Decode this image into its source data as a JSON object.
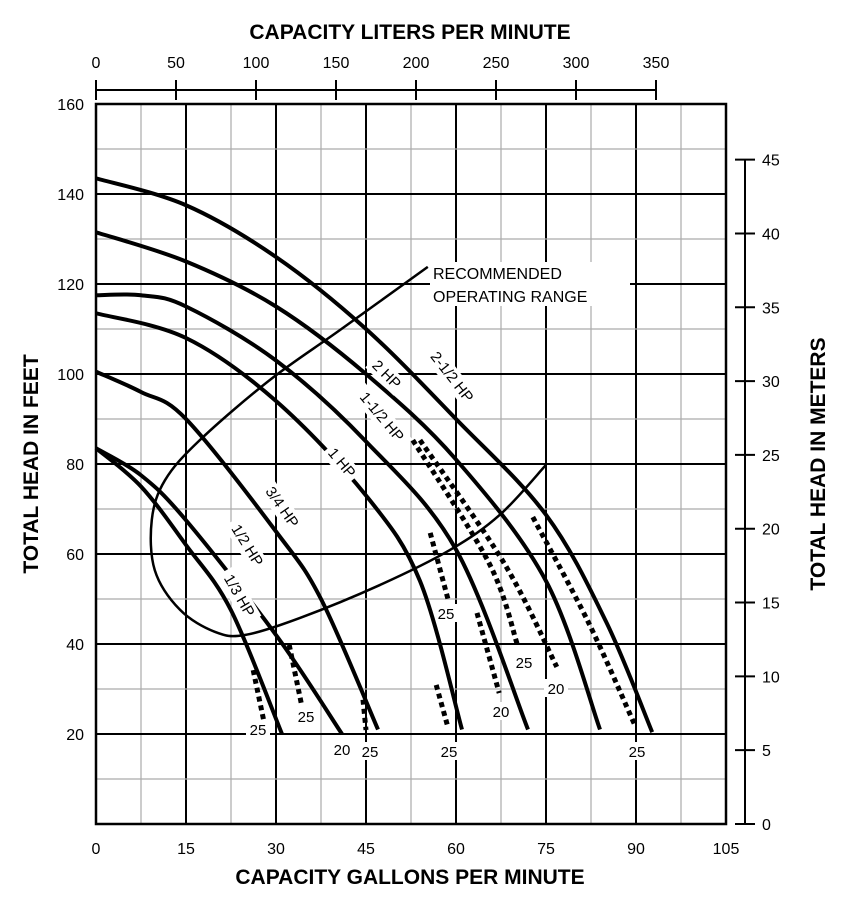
{
  "chart_data": {
    "type": "line",
    "title": "",
    "xlabel": "CAPACITY GALLONS PER MINUTE",
    "ylabel": "TOTAL HEAD IN FEET",
    "x2label": "CAPACITY LITERS PER MINUTE",
    "y2label": "TOTAL HEAD IN METERS",
    "xlim": [
      0,
      105
    ],
    "ylim": [
      0,
      160
    ],
    "x2lim": [
      0,
      350
    ],
    "y2lim": [
      0,
      45
    ],
    "grid": true,
    "xticks": [
      "0",
      "15",
      "30",
      "45",
      "60",
      "75",
      "90",
      "105"
    ],
    "yticks": [
      "20",
      "40",
      "60",
      "80",
      "100",
      "120",
      "140",
      "160"
    ],
    "x2ticks": [
      "0",
      "50",
      "100",
      "150",
      "200",
      "250",
      "300",
      "350"
    ],
    "y2ticks": [
      "0",
      "5",
      "10",
      "15",
      "20",
      "25",
      "30",
      "35",
      "40",
      "45"
    ],
    "series": [
      {
        "name": "2-1/2 HP",
        "x": [
          0,
          15,
          30,
          45,
          60,
          75,
          85,
          92.7
        ],
        "y": [
          143.5,
          137.5,
          126,
          110,
          90,
          68.7,
          45,
          20.4
        ]
      },
      {
        "name": "2 HP",
        "x": [
          0,
          15,
          30,
          45,
          60,
          75,
          84
        ],
        "y": [
          131.5,
          125,
          115,
          100,
          81,
          54,
          21
        ]
      },
      {
        "name": "1-1/2 HP",
        "x": [
          0,
          7.5,
          15,
          30,
          45,
          60,
          72
        ],
        "y": [
          117.5,
          117.5,
          115,
          103,
          85,
          61,
          21
        ]
      },
      {
        "name": "1 HP",
        "x": [
          0,
          15,
          30,
          45,
          54,
          61
        ],
        "y": [
          113.5,
          108,
          94,
          73,
          54,
          21
        ]
      },
      {
        "name": "3/4 HP",
        "x": [
          0,
          7.5,
          15,
          30,
          37.5,
          47
        ],
        "y": [
          100.5,
          96,
          90,
          65,
          50,
          21
        ]
      },
      {
        "name": "1/2 HP",
        "x": [
          0,
          7.5,
          15,
          30,
          41
        ],
        "y": [
          83.5,
          77.5,
          67.5,
          42,
          20
        ]
      },
      {
        "name": "1/3 HP",
        "x": [
          0,
          7.5,
          15,
          22.5,
          31
        ],
        "y": [
          83.5,
          75,
          62,
          47.5,
          20
        ]
      }
    ],
    "dotted_branches": [
      {
        "label": "25",
        "x": [
          26.2,
          28
        ],
        "y": [
          34.2,
          22.7
        ]
      },
      {
        "label": "25",
        "x": [
          32.2,
          34.2
        ],
        "y": [
          39.8,
          26.9
        ]
      },
      {
        "label": "20",
        "x": [],
        "y": []
      },
      {
        "label": "25",
        "x": [
          44.5,
          45
        ],
        "y": [
          27.6,
          20.9
        ]
      },
      {
        "label": "25",
        "x": [
          55.7,
          58.7
        ],
        "y": [
          64.7,
          49.8
        ]
      },
      {
        "label": "25",
        "x": [
          56.7,
          58.7
        ],
        "y": [
          30.9,
          21.3
        ]
      },
      {
        "label": "20",
        "x": [
          63.5,
          67.2
        ],
        "y": [
          46.9,
          29.1
        ]
      },
      {
        "label": "25",
        "x": [
          52.8,
          65.5,
          70.2
        ],
        "y": [
          85.3,
          58,
          40
        ]
      },
      {
        "label": "20",
        "x": [
          54,
          68,
          76.8
        ],
        "y": [
          85.3,
          58,
          34.9
        ]
      },
      {
        "label": "25",
        "x": [
          72.8,
          82,
          89.8
        ],
        "y": [
          68.2,
          45,
          22
        ]
      }
    ],
    "annotations": {
      "range_label_1": "RECOMMENDED",
      "range_label_2": "OPERATING RANGE",
      "range_boundary": {
        "x": [
          55.3,
          40.7,
          29,
          17.3,
          11.5,
          9.3,
          9.8,
          14,
          19.8,
          24.8,
          34,
          47.3,
          59,
          67.3,
          75
        ],
        "y": [
          123.8,
          109.8,
          98.7,
          85.3,
          76.4,
          67.6,
          56.4,
          47.6,
          42.7,
          42,
          45.8,
          53.1,
          60.9,
          68.7,
          79.8
        ]
      }
    }
  }
}
